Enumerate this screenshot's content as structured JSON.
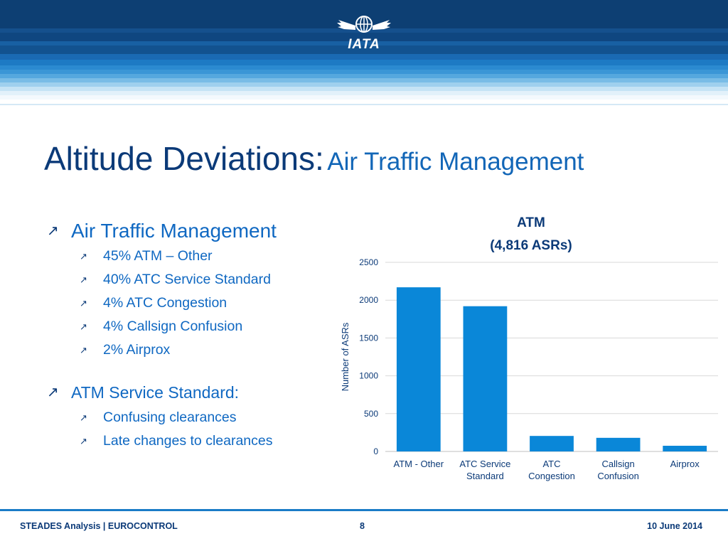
{
  "header": {
    "logo_text": "IATA"
  },
  "title": {
    "main": "Altitude Deviations:",
    "sub": "Air Traffic Management"
  },
  "bullets": {
    "group1": {
      "heading": "Air Traffic Management",
      "items": [
        "45% ATM – Other",
        "40% ATC Service Standard",
        "4% ATC Congestion",
        "4% Callsign Confusion",
        "2% Airprox"
      ]
    },
    "group2": {
      "heading": "ATM Service Standard:",
      "items": [
        "Confusing clearances",
        "Late changes to clearances"
      ]
    }
  },
  "chart_data": {
    "type": "bar",
    "title": "ATM",
    "subtitle": "(4,816 ASRs)",
    "ylabel": "Number of ASRs",
    "xlabel": "",
    "categories": [
      [
        "ATM - Other"
      ],
      [
        "ATC Service",
        "Standard"
      ],
      [
        "ATC",
        "Congestion"
      ],
      [
        "Callsign",
        "Confusion"
      ],
      [
        "Airprox"
      ]
    ],
    "values": [
      2170,
      1920,
      205,
      180,
      75
    ],
    "ylim": [
      0,
      2500
    ],
    "yticks": [
      0,
      500,
      1000,
      1500,
      2000,
      2500
    ],
    "bar_color": "#0a87d8",
    "grid": true
  },
  "footer": {
    "left": "STEADES Analysis | EUROCONTROL",
    "page": "8",
    "date": "10 June 2014"
  }
}
